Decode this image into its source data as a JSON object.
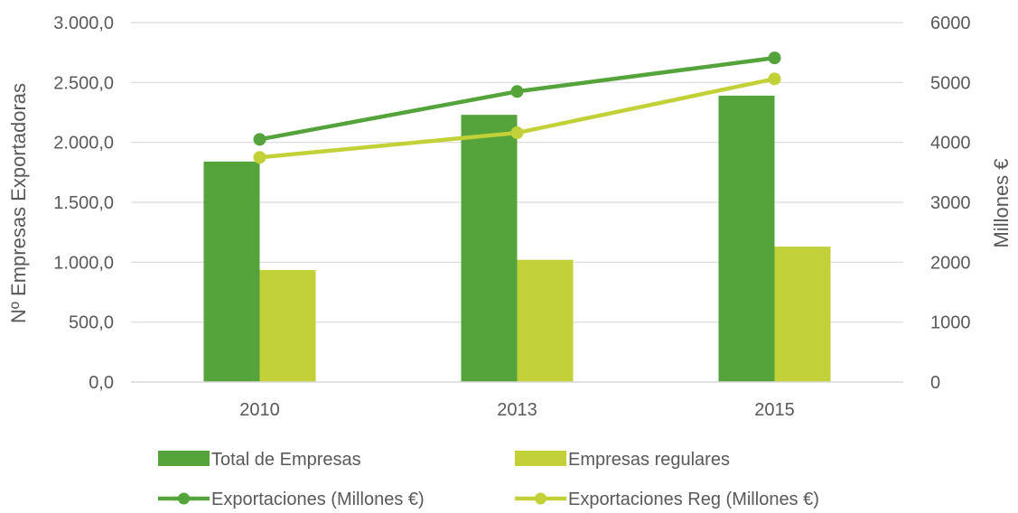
{
  "chart_data": {
    "type": "bar",
    "categories": [
      "2010",
      "2013",
      "2015"
    ],
    "left_axis": {
      "label": "Nº Empresas Exportadoras",
      "range": [
        0,
        3000
      ],
      "ticks": [
        "0,0",
        "500,0",
        "1.000,0",
        "1.500,0",
        "2.000,0",
        "2.500,0",
        "3.000,0"
      ]
    },
    "right_axis": {
      "label": "Millones €",
      "range": [
        0,
        6000
      ],
      "ticks": [
        "0",
        "1000",
        "2000",
        "3000",
        "4000",
        "5000",
        "6000"
      ]
    },
    "bar_series": [
      {
        "name": "Total de Empresas",
        "values": [
          1840,
          2230,
          2390
        ],
        "color": "#54a33b"
      },
      {
        "name": "Empresas regulares",
        "values": [
          935,
          1020,
          1130
        ],
        "color": "#c3d139"
      }
    ],
    "line_series": [
      {
        "name": "Exportaciones (Millones €)",
        "values": [
          4050,
          4850,
          5410
        ],
        "color": "#54a33b"
      },
      {
        "name": "Exportaciones Reg (Millones €)",
        "values": [
          3750,
          4160,
          5060
        ],
        "color": "#c3d139"
      }
    ],
    "grid": true,
    "legend_position": "bottom"
  }
}
